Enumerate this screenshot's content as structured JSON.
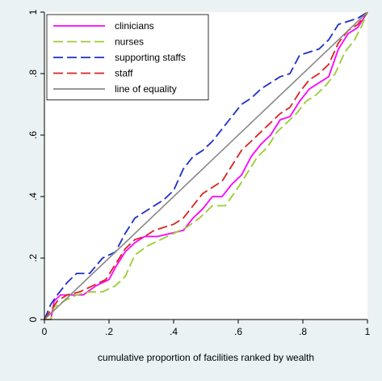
{
  "chart_data": {
    "type": "line",
    "title": "",
    "xlabel": "cumulative proportion of facilities ranked by wealth",
    "ylabel": "",
    "xlim": [
      0,
      1
    ],
    "ylim": [
      0,
      1
    ],
    "xticks": [
      "0",
      ".2",
      ".4",
      ".6",
      ".8",
      "1"
    ],
    "yticks": [
      "0",
      ".2",
      ".4",
      ".6",
      ".8",
      "1"
    ],
    "grid": false,
    "legend_position": "top-left",
    "series": [
      {
        "name": "clinicians",
        "color": "#ff00ff",
        "dash": "solid",
        "points": [
          [
            0,
            0
          ],
          [
            0.02,
            0
          ],
          [
            0.03,
            0.06
          ],
          [
            0.05,
            0.08
          ],
          [
            0.08,
            0.08
          ],
          [
            0.12,
            0.08
          ],
          [
            0.16,
            0.11
          ],
          [
            0.2,
            0.13
          ],
          [
            0.22,
            0.17
          ],
          [
            0.25,
            0.22
          ],
          [
            0.28,
            0.25
          ],
          [
            0.31,
            0.27
          ],
          [
            0.35,
            0.27
          ],
          [
            0.39,
            0.28
          ],
          [
            0.43,
            0.29
          ],
          [
            0.46,
            0.33
          ],
          [
            0.49,
            0.36
          ],
          [
            0.52,
            0.4
          ],
          [
            0.55,
            0.4
          ],
          [
            0.58,
            0.44
          ],
          [
            0.61,
            0.47
          ],
          [
            0.64,
            0.53
          ],
          [
            0.67,
            0.57
          ],
          [
            0.7,
            0.6
          ],
          [
            0.73,
            0.65
          ],
          [
            0.76,
            0.66
          ],
          [
            0.79,
            0.71
          ],
          [
            0.82,
            0.75
          ],
          [
            0.85,
            0.77
          ],
          [
            0.88,
            0.79
          ],
          [
            0.91,
            0.88
          ],
          [
            0.94,
            0.93
          ],
          [
            0.97,
            0.95
          ],
          [
            1,
            1
          ]
        ]
      },
      {
        "name": "nurses",
        "color": "#9acd32",
        "dash": "long",
        "points": [
          [
            0,
            0
          ],
          [
            0.02,
            0
          ],
          [
            0.03,
            0.04
          ],
          [
            0.06,
            0.06
          ],
          [
            0.1,
            0.08
          ],
          [
            0.14,
            0.09
          ],
          [
            0.18,
            0.09
          ],
          [
            0.22,
            0.11
          ],
          [
            0.25,
            0.14
          ],
          [
            0.28,
            0.21
          ],
          [
            0.32,
            0.24
          ],
          [
            0.36,
            0.26
          ],
          [
            0.4,
            0.28
          ],
          [
            0.44,
            0.3
          ],
          [
            0.48,
            0.33
          ],
          [
            0.52,
            0.37
          ],
          [
            0.56,
            0.37
          ],
          [
            0.6,
            0.43
          ],
          [
            0.63,
            0.48
          ],
          [
            0.66,
            0.53
          ],
          [
            0.69,
            0.56
          ],
          [
            0.72,
            0.61
          ],
          [
            0.75,
            0.64
          ],
          [
            0.78,
            0.67
          ],
          [
            0.81,
            0.71
          ],
          [
            0.84,
            0.73
          ],
          [
            0.87,
            0.76
          ],
          [
            0.9,
            0.8
          ],
          [
            0.93,
            0.87
          ],
          [
            0.96,
            0.91
          ],
          [
            0.98,
            0.95
          ],
          [
            1,
            1
          ]
        ]
      },
      {
        "name": "supporting staffs",
        "color": "#1e2ec8",
        "dash": "long",
        "points": [
          [
            0,
            0
          ],
          [
            0.02,
            0.05
          ],
          [
            0.04,
            0.08
          ],
          [
            0.07,
            0.12
          ],
          [
            0.1,
            0.15
          ],
          [
            0.14,
            0.15
          ],
          [
            0.18,
            0.2
          ],
          [
            0.22,
            0.22
          ],
          [
            0.25,
            0.28
          ],
          [
            0.28,
            0.33
          ],
          [
            0.31,
            0.35
          ],
          [
            0.34,
            0.37
          ],
          [
            0.37,
            0.39
          ],
          [
            0.4,
            0.42
          ],
          [
            0.43,
            0.49
          ],
          [
            0.46,
            0.53
          ],
          [
            0.49,
            0.55
          ],
          [
            0.52,
            0.58
          ],
          [
            0.55,
            0.62
          ],
          [
            0.58,
            0.66
          ],
          [
            0.61,
            0.7
          ],
          [
            0.64,
            0.72
          ],
          [
            0.67,
            0.75
          ],
          [
            0.7,
            0.77
          ],
          [
            0.73,
            0.79
          ],
          [
            0.76,
            0.8
          ],
          [
            0.79,
            0.86
          ],
          [
            0.82,
            0.87
          ],
          [
            0.85,
            0.88
          ],
          [
            0.88,
            0.91
          ],
          [
            0.91,
            0.96
          ],
          [
            0.94,
            0.97
          ],
          [
            0.97,
            0.98
          ],
          [
            1,
            1
          ]
        ]
      },
      {
        "name": "staff",
        "color": "#dd2222",
        "dash": "long",
        "points": [
          [
            0,
            0
          ],
          [
            0.02,
            0.03
          ],
          [
            0.04,
            0.06
          ],
          [
            0.07,
            0.08
          ],
          [
            0.11,
            0.09
          ],
          [
            0.15,
            0.11
          ],
          [
            0.19,
            0.13
          ],
          [
            0.22,
            0.18
          ],
          [
            0.25,
            0.23
          ],
          [
            0.28,
            0.26
          ],
          [
            0.31,
            0.27
          ],
          [
            0.34,
            0.29
          ],
          [
            0.37,
            0.3
          ],
          [
            0.4,
            0.31
          ],
          [
            0.43,
            0.33
          ],
          [
            0.46,
            0.37
          ],
          [
            0.49,
            0.41
          ],
          [
            0.52,
            0.43
          ],
          [
            0.55,
            0.45
          ],
          [
            0.58,
            0.5
          ],
          [
            0.61,
            0.55
          ],
          [
            0.64,
            0.58
          ],
          [
            0.67,
            0.61
          ],
          [
            0.7,
            0.64
          ],
          [
            0.73,
            0.67
          ],
          [
            0.76,
            0.69
          ],
          [
            0.79,
            0.74
          ],
          [
            0.82,
            0.78
          ],
          [
            0.85,
            0.8
          ],
          [
            0.88,
            0.83
          ],
          [
            0.91,
            0.9
          ],
          [
            0.94,
            0.94
          ],
          [
            0.97,
            0.96
          ],
          [
            1,
            1
          ]
        ]
      },
      {
        "name": "line of equality",
        "color": "#888888",
        "dash": "solid",
        "points": [
          [
            0,
            0
          ],
          [
            1,
            1
          ]
        ]
      }
    ]
  }
}
